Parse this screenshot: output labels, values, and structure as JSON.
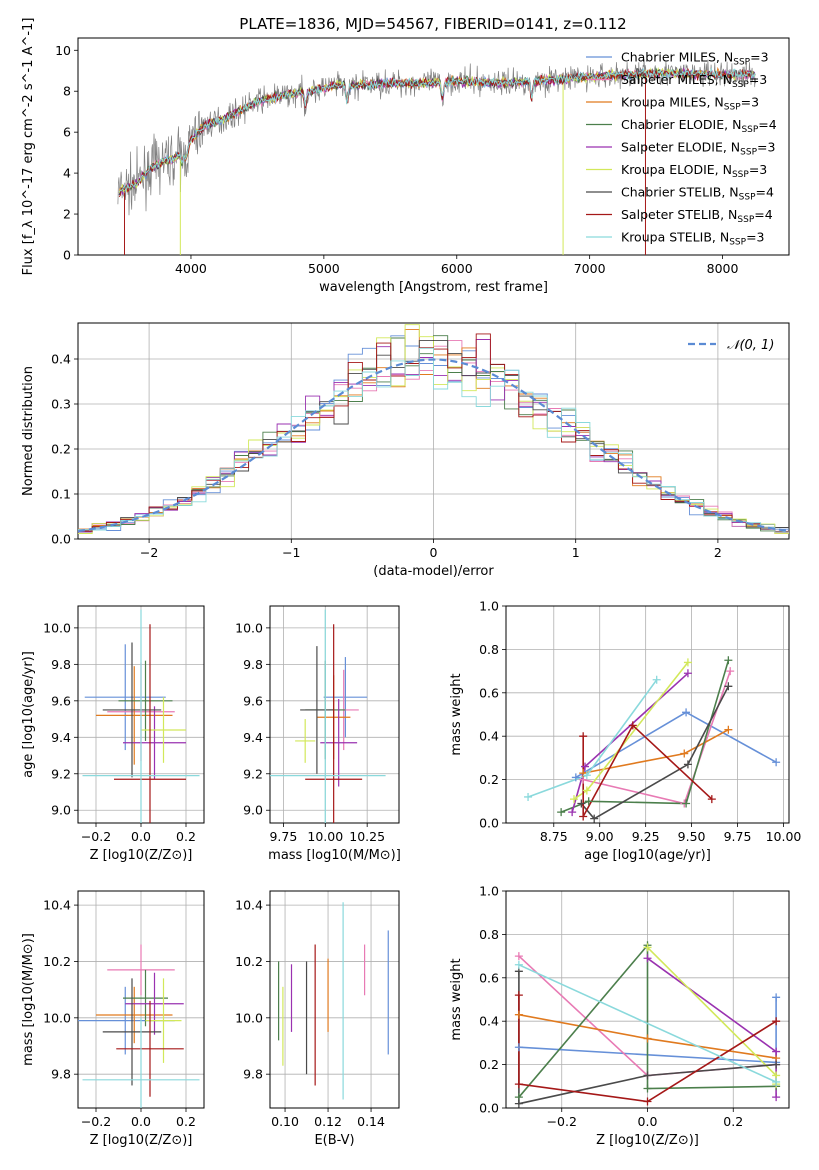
{
  "title": "PLATE=1836, MJD=54567, FIBERID=0141, z=0.112",
  "colors": {
    "Chabrier MILES": "#6690d8",
    "Salpeter MILES": "#e87ab4",
    "Kroupa MILES": "#e07a1f",
    "Chabrier ELODIE": "#4c7f4c",
    "Salpeter ELODIE": "#9a32b0",
    "Kroupa ELODIE": "#d2e85a",
    "Chabrier STELIB": "#4a4a4a",
    "Salpeter STELIB": "#a51818",
    "Kroupa STELIB": "#8ad9dc",
    "data": "#808080"
  },
  "chart_data": [
    {
      "id": "spectrum",
      "type": "line",
      "xlabel": "wavelength [Angstrom, rest frame]",
      "ylabel": "Flux [f_λ 10^-17 erg cm^-2 s^-1 A^-1]",
      "xlim": [
        3150,
        8500
      ],
      "ylim": [
        0,
        10.6
      ],
      "xticks": [
        "4000",
        "5000",
        "6000",
        "7000",
        "8000"
      ],
      "yticks": [
        "0",
        "2",
        "4",
        "6",
        "8",
        "10"
      ],
      "legend": [
        {
          "name": "Chabrier MILES",
          "nssp": "3"
        },
        {
          "name": "Salpeter MILES",
          "nssp": "3"
        },
        {
          "name": "Kroupa MILES",
          "nssp": "3"
        },
        {
          "name": "Chabrier ELODIE",
          "nssp": "4"
        },
        {
          "name": "Salpeter ELODIE",
          "nssp": "3"
        },
        {
          "name": "Kroupa ELODIE",
          "nssp": "3"
        },
        {
          "name": "Chabrier STELIB",
          "nssp": "4"
        },
        {
          "name": "Salpeter STELIB",
          "nssp": "4"
        },
        {
          "name": "Kroupa STELIB",
          "nssp": "3"
        }
      ],
      "legend_position": "top-right",
      "continuum": [
        [
          3450,
          3.1
        ],
        [
          3600,
          3.5
        ],
        [
          3700,
          4.3
        ],
        [
          3800,
          4.6
        ],
        [
          3950,
          4.9
        ],
        [
          4000,
          5.6
        ],
        [
          4100,
          6.3
        ],
        [
          4300,
          6.8
        ],
        [
          4500,
          7.5
        ],
        [
          4700,
          7.8
        ],
        [
          4900,
          8.0
        ],
        [
          5100,
          8.3
        ],
        [
          5300,
          8.3
        ],
        [
          5500,
          8.4
        ],
        [
          5800,
          8.4
        ],
        [
          6000,
          8.5
        ],
        [
          6300,
          8.4
        ],
        [
          6600,
          8.5
        ],
        [
          7000,
          8.7
        ],
        [
          7500,
          8.9
        ],
        [
          8000,
          8.8
        ],
        [
          8250,
          8.8
        ]
      ]
    },
    {
      "id": "residuals",
      "type": "line",
      "xlabel": "(data-model)/error",
      "ylabel": "Normed distribution",
      "xlim": [
        -2.5,
        2.5
      ],
      "ylim": [
        0,
        0.48
      ],
      "xticks": [
        "−2",
        "−1",
        "0",
        "1",
        "2"
      ],
      "yticks": [
        "0.0",
        "0.1",
        "0.2",
        "0.3",
        "0.4"
      ],
      "grid": true,
      "legend_label": "𝒩(0, 1)",
      "legend_position": "top-right"
    },
    {
      "id": "age_vs_Z",
      "type": "scatter",
      "xlabel": "Z [log10(Z/Z⊙)]",
      "ylabel": "age  [log10(age/yr)]",
      "xlim": [
        -0.28,
        0.28
      ],
      "ylim": [
        8.93,
        10.12
      ],
      "xticks": [
        "−0.2",
        "0.0",
        "0.2"
      ],
      "yticks": [
        "9.0",
        "9.2",
        "9.4",
        "9.6",
        "9.8",
        "10.0"
      ],
      "grid": true,
      "points": [
        {
          "x": -0.07,
          "y": 9.62,
          "xerr": 0.18,
          "yerr": 0.29,
          "series": "Chabrier MILES"
        },
        {
          "x": 0.0,
          "y": 9.54,
          "xerr": 0.15,
          "yerr": 0.27,
          "series": "Salpeter MILES"
        },
        {
          "x": -0.03,
          "y": 9.52,
          "xerr": 0.17,
          "yerr": 0.27,
          "series": "Kroupa MILES"
        },
        {
          "x": 0.02,
          "y": 9.6,
          "xerr": 0.12,
          "yerr": 0.22,
          "series": "Chabrier ELODIE"
        },
        {
          "x": 0.06,
          "y": 9.37,
          "xerr": 0.14,
          "yerr": 0.2,
          "series": "Salpeter ELODIE"
        },
        {
          "x": 0.1,
          "y": 9.44,
          "xerr": 0.1,
          "yerr": 0.18,
          "series": "Kroupa ELODIE"
        },
        {
          "x": -0.04,
          "y": 9.55,
          "xerr": 0.13,
          "yerr": 0.37,
          "series": "Chabrier STELIB"
        },
        {
          "x": 0.04,
          "y": 9.17,
          "xerr": 0.16,
          "yerr": 0.85,
          "series": "Salpeter STELIB"
        },
        {
          "x": 0.0,
          "y": 9.19,
          "xerr": 0.26,
          "yerr": 0.91,
          "series": "Kroupa STELIB"
        }
      ]
    },
    {
      "id": "age_vs_mass",
      "type": "scatter",
      "xlabel": "mass [log10(M/M⊙)]",
      "ylabel": "",
      "xlim": [
        9.67,
        10.44
      ],
      "ylim": [
        8.93,
        10.12
      ],
      "xticks": [
        "9.75",
        "10.00",
        "10.25"
      ],
      "yticks": [
        "9.0",
        "9.2",
        "9.4",
        "9.6",
        "9.8",
        "10.0"
      ],
      "grid": true,
      "points": [
        {
          "x": 10.12,
          "y": 9.62,
          "xerr": 0.13,
          "yerr": 0.22,
          "series": "Chabrier MILES"
        },
        {
          "x": 10.11,
          "y": 9.55,
          "xerr": 0.09,
          "yerr": 0.22,
          "series": "Salpeter MILES"
        },
        {
          "x": 10.05,
          "y": 9.51,
          "xerr": 0.1,
          "yerr": 0.23,
          "series": "Kroupa MILES"
        },
        {
          "x": 10.0,
          "y": 9.55,
          "xerr": 0.12,
          "yerr": 0.27,
          "series": "Chabrier ELODIE"
        },
        {
          "x": 10.08,
          "y": 9.37,
          "xerr": 0.11,
          "yerr": 0.24,
          "series": "Salpeter ELODIE"
        },
        {
          "x": 9.88,
          "y": 9.38,
          "xerr": 0.06,
          "yerr": 0.12,
          "series": "Kroupa ELODIE"
        },
        {
          "x": 9.95,
          "y": 9.55,
          "xerr": 0.1,
          "yerr": 0.35,
          "series": "Chabrier STELIB"
        },
        {
          "x": 10.05,
          "y": 9.17,
          "xerr": 0.17,
          "yerr": 0.85,
          "series": "Salpeter STELIB"
        },
        {
          "x": 10.0,
          "y": 9.19,
          "xerr": 0.36,
          "yerr": 0.91,
          "series": "Kroupa STELIB"
        }
      ]
    },
    {
      "id": "mass_weight_vs_age",
      "type": "line",
      "xlabel": "age  [log10(age/yr)]",
      "ylabel": "mass weight",
      "xlim": [
        8.49,
        10.03
      ],
      "ylim": [
        0,
        1.0
      ],
      "xticks": [
        "8.75",
        "9.00",
        "9.25",
        "9.50",
        "9.75",
        "10.00"
      ],
      "yticks": [
        "0.0",
        "0.2",
        "0.4",
        "0.6",
        "0.8",
        "1.0"
      ],
      "grid": true,
      "series": [
        {
          "series": "Chabrier MILES",
          "x": [
            9.96,
            9.47,
            8.87
          ],
          "y": [
            0.28,
            0.51,
            0.21
          ]
        },
        {
          "series": "Salpeter MILES",
          "x": [
            9.71,
            9.46,
            8.91
          ],
          "y": [
            0.7,
            0.09,
            0.2
          ]
        },
        {
          "series": "Kroupa MILES",
          "x": [
            9.7,
            9.46,
            8.91
          ],
          "y": [
            0.43,
            0.32,
            0.23
          ]
        },
        {
          "series": "Chabrier ELODIE",
          "x": [
            9.7,
            9.47,
            8.94,
            8.79
          ],
          "y": [
            0.75,
            0.09,
            0.1,
            0.05
          ]
        },
        {
          "series": "Salpeter ELODIE",
          "x": [
            9.48,
            8.92,
            8.85
          ],
          "y": [
            0.69,
            0.26,
            0.05
          ]
        },
        {
          "series": "Kroupa ELODIE",
          "x": [
            9.48,
            8.93,
            8.86
          ],
          "y": [
            0.74,
            0.15,
            0.11
          ]
        },
        {
          "series": "Chabrier STELIB",
          "x": [
            9.7,
            9.48,
            8.97,
            8.9
          ],
          "y": [
            0.63,
            0.27,
            0.02,
            0.09
          ]
        },
        {
          "series": "Salpeter STELIB",
          "x": [
            9.61,
            9.18,
            8.91,
            8.91
          ],
          "y": [
            0.11,
            0.45,
            0.03,
            0.4
          ]
        },
        {
          "series": "Kroupa STELIB",
          "x": [
            9.31,
            8.93,
            8.61
          ],
          "y": [
            0.66,
            0.22,
            0.12
          ]
        }
      ]
    },
    {
      "id": "mass_vs_Z",
      "type": "scatter",
      "xlabel": "Z [log10(Z/Z⊙)]",
      "ylabel": "mass [log10(M/M⊙)]",
      "xlim": [
        -0.28,
        0.28
      ],
      "ylim": [
        9.68,
        10.45
      ],
      "xticks": [
        "−0.2",
        "0.0",
        "0.2"
      ],
      "yticks": [
        "9.8",
        "10.0",
        "10.2",
        "10.4"
      ],
      "grid": true,
      "points": [
        {
          "x": -0.07,
          "y": 9.99,
          "xerr": 0.22,
          "yerr": 0.12,
          "series": "Chabrier MILES"
        },
        {
          "x": 0.0,
          "y": 10.17,
          "xerr": 0.15,
          "yerr": 0.09,
          "series": "Salpeter MILES"
        },
        {
          "x": -0.03,
          "y": 10.01,
          "xerr": 0.17,
          "yerr": 0.1,
          "series": "Kroupa MILES"
        },
        {
          "x": 0.02,
          "y": 10.07,
          "xerr": 0.1,
          "yerr": 0.1,
          "series": "Chabrier ELODIE"
        },
        {
          "x": 0.06,
          "y": 10.05,
          "xerr": 0.13,
          "yerr": 0.11,
          "series": "Salpeter ELODIE"
        },
        {
          "x": 0.1,
          "y": 9.99,
          "xerr": 0.08,
          "yerr": 0.15,
          "series": "Kroupa ELODIE"
        },
        {
          "x": -0.04,
          "y": 9.95,
          "xerr": 0.13,
          "yerr": 0.19,
          "series": "Chabrier STELIB"
        },
        {
          "x": 0.04,
          "y": 9.89,
          "xerr": 0.15,
          "yerr": 0.17,
          "series": "Salpeter STELIB"
        },
        {
          "x": 0.0,
          "y": 9.78,
          "xerr": 0.26,
          "yerr": 0.22,
          "series": "Kroupa STELIB"
        }
      ]
    },
    {
      "id": "mass_vs_EBV",
      "type": "scatter",
      "xlabel": "E(B-V)",
      "ylabel": "",
      "xlim": [
        0.093,
        0.153
      ],
      "ylim": [
        9.68,
        10.45
      ],
      "xticks": [
        "0.10",
        "0.12",
        "0.14"
      ],
      "yticks": [
        "9.8",
        "10.0",
        "10.2",
        "10.4"
      ],
      "grid": true,
      "points": [
        {
          "x": 0.148,
          "y": 10.09,
          "yerr": 0.22,
          "series": "Chabrier MILES"
        },
        {
          "x": 0.137,
          "y": 10.17,
          "yerr": 0.09,
          "series": "Salpeter MILES"
        },
        {
          "x": 0.12,
          "y": 10.08,
          "yerr": 0.13,
          "series": "Kroupa MILES"
        },
        {
          "x": 0.097,
          "y": 10.06,
          "yerr": 0.14,
          "series": "Chabrier ELODIE"
        },
        {
          "x": 0.103,
          "y": 10.07,
          "yerr": 0.12,
          "series": "Salpeter ELODIE"
        },
        {
          "x": 0.099,
          "y": 9.97,
          "yerr": 0.14,
          "series": "Kroupa ELODIE"
        },
        {
          "x": 0.11,
          "y": 10.0,
          "yerr": 0.2,
          "series": "Chabrier STELIB"
        },
        {
          "x": 0.114,
          "y": 10.01,
          "yerr": 0.25,
          "series": "Salpeter STELIB"
        },
        {
          "x": 0.127,
          "y": 10.06,
          "yerr": 0.35,
          "series": "Kroupa STELIB"
        }
      ]
    },
    {
      "id": "mass_weight_vs_Z",
      "type": "line",
      "xlabel": "Z [log10(Z/Z⊙)]",
      "ylabel": "mass weight",
      "xlim": [
        -0.33,
        0.33
      ],
      "ylim": [
        0,
        1.0
      ],
      "xticks": [
        "−0.2",
        "0.0",
        "0.2"
      ],
      "yticks": [
        "0.0",
        "0.2",
        "0.4",
        "0.6",
        "0.8",
        "1.0"
      ],
      "grid": true,
      "series": [
        {
          "series": "Chabrier MILES",
          "x": [
            -0.3,
            0.3,
            0.3
          ],
          "y": [
            0.28,
            0.21,
            0.51
          ]
        },
        {
          "series": "Salpeter MILES",
          "x": [
            -0.3,
            0.0,
            0.3
          ],
          "y": [
            0.7,
            0.15,
            0.2
          ]
        },
        {
          "series": "Kroupa MILES",
          "x": [
            -0.3,
            0.0,
            0.3
          ],
          "y": [
            0.43,
            0.32,
            0.23
          ]
        },
        {
          "series": "Chabrier ELODIE",
          "x": [
            -0.3,
            0.0,
            0.0,
            0.3
          ],
          "y": [
            0.05,
            0.75,
            0.09,
            0.1
          ]
        },
        {
          "series": "Salpeter ELODIE",
          "x": [
            0.0,
            0.3,
            0.3
          ],
          "y": [
            0.69,
            0.26,
            0.05
          ]
        },
        {
          "series": "Kroupa ELODIE",
          "x": [
            0.0,
            0.3,
            0.3
          ],
          "y": [
            0.74,
            0.15,
            0.11
          ]
        },
        {
          "series": "Chabrier STELIB",
          "x": [
            -0.3,
            -0.3,
            0.0,
            0.3
          ],
          "y": [
            0.63,
            0.02,
            0.15,
            0.2
          ]
        },
        {
          "series": "Salpeter STELIB",
          "x": [
            -0.3,
            -0.3,
            0.0,
            0.3
          ],
          "y": [
            0.52,
            0.11,
            0.03,
            0.4
          ]
        },
        {
          "series": "Kroupa STELIB",
          "x": [
            -0.3,
            0.3
          ],
          "y": [
            0.66,
            0.12
          ]
        }
      ]
    }
  ]
}
